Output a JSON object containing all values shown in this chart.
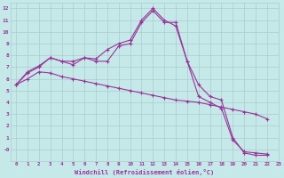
{
  "xlabel": "Windchill (Refroidissement éolien,°C)",
  "bg_color": "#c5e8e8",
  "grid_color": "#aacccc",
  "line_color": "#993399",
  "marker": "+",
  "xlim": [
    -0.5,
    23
  ],
  "ylim": [
    -1,
    12.5
  ],
  "xtick_labels": [
    "0",
    "1",
    "2",
    "3",
    "4",
    "5",
    "6",
    "7",
    "8",
    "9",
    "10",
    "11",
    "12",
    "13",
    "14",
    "15",
    "16",
    "17",
    "18",
    "19",
    "20",
    "21",
    "22",
    "23"
  ],
  "xtick_vals": [
    0,
    1,
    2,
    3,
    4,
    5,
    6,
    7,
    8,
    9,
    10,
    11,
    12,
    13,
    14,
    15,
    16,
    17,
    18,
    19,
    20,
    21,
    22,
    23
  ],
  "ytick_vals": [
    0,
    1,
    2,
    3,
    4,
    5,
    6,
    7,
    8,
    9,
    10,
    11,
    12
  ],
  "ytick_labels": [
    "-0",
    "1",
    "2",
    "3",
    "4",
    "5",
    "6",
    "7",
    "8",
    "9",
    "10",
    "11",
    "12"
  ],
  "series": [
    [
      5.5,
      6.6,
      7.1,
      7.8,
      7.5,
      7.5,
      7.8,
      7.7,
      8.5,
      9.0,
      9.3,
      11.0,
      12.0,
      11.0,
      10.5,
      7.5,
      5.5,
      4.5,
      4.2,
      1.0,
      -0.3,
      -0.5,
      -0.5
    ],
    [
      5.5,
      6.5,
      7.0,
      7.8,
      7.5,
      7.2,
      7.8,
      7.5,
      7.5,
      8.8,
      9.0,
      10.8,
      11.8,
      10.8,
      10.8,
      7.5,
      4.5,
      4.0,
      3.5,
      0.8,
      -0.2,
      -0.3,
      -0.4
    ],
    [
      5.5,
      6.0,
      6.6,
      6.5,
      6.2,
      6.0,
      5.8,
      5.6,
      5.4,
      5.2,
      5.0,
      4.8,
      4.6,
      4.4,
      4.2,
      4.1,
      4.0,
      3.8,
      3.6,
      3.4,
      3.2,
      3.0,
      2.6
    ]
  ]
}
